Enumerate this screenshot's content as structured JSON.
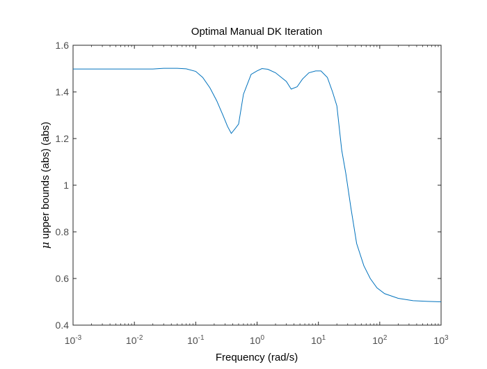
{
  "chart_data": {
    "type": "line",
    "title": "Optimal Manual DK Iteration",
    "xlabel": "Frequency (rad/s)",
    "ylabel": {
      "symbol": "μ",
      "text": " upper bounds (abs) (abs)"
    },
    "xscale": "log",
    "xlim": [
      0.001,
      1000
    ],
    "ylim": [
      0.4,
      1.6
    ],
    "grid": false,
    "xticks": [
      {
        "value": 0.001,
        "base": "10",
        "exp": "-3"
      },
      {
        "value": 0.01,
        "base": "10",
        "exp": "-2"
      },
      {
        "value": 0.1,
        "base": "10",
        "exp": "-1"
      },
      {
        "value": 1,
        "base": "10",
        "exp": "0"
      },
      {
        "value": 10,
        "base": "10",
        "exp": "1"
      },
      {
        "value": 100,
        "base": "10",
        "exp": "2"
      },
      {
        "value": 1000,
        "base": "10",
        "exp": "3"
      }
    ],
    "yticks": [
      {
        "value": 0.4,
        "label": "0.4"
      },
      {
        "value": 0.6,
        "label": "0.6"
      },
      {
        "value": 0.8,
        "label": "0.8"
      },
      {
        "value": 1.0,
        "label": "1"
      },
      {
        "value": 1.2,
        "label": "1.2"
      },
      {
        "value": 1.4,
        "label": "1.4"
      },
      {
        "value": 1.6,
        "label": "1.6"
      }
    ],
    "series": [
      {
        "color": "#0072bd",
        "x": [
          0.001,
          0.003,
          0.01,
          0.02,
          0.03,
          0.05,
          0.07,
          0.1,
          0.13,
          0.17,
          0.22,
          0.28,
          0.33,
          0.38,
          0.45,
          0.5,
          0.6,
          0.8,
          1.0,
          1.2,
          1.5,
          2.0,
          3.0,
          3.6,
          4.5,
          5.5,
          7.0,
          9.0,
          11.0,
          14.0,
          17.0,
          20.0,
          24.0,
          28.0,
          34.0,
          42.0,
          55.0,
          70.0,
          90.0,
          120.0,
          200.0,
          350.0,
          600.0,
          1000.0
        ],
        "y": [
          1.498,
          1.498,
          1.498,
          1.498,
          1.501,
          1.501,
          1.499,
          1.488,
          1.462,
          1.418,
          1.362,
          1.298,
          1.252,
          1.222,
          1.246,
          1.262,
          1.39,
          1.475,
          1.49,
          1.5,
          1.497,
          1.482,
          1.445,
          1.412,
          1.422,
          1.455,
          1.482,
          1.49,
          1.49,
          1.462,
          1.4,
          1.34,
          1.15,
          1.05,
          0.9,
          0.75,
          0.655,
          0.6,
          0.56,
          0.535,
          0.515,
          0.505,
          0.502,
          0.5
        ]
      }
    ]
  },
  "style": {
    "axis_color": "#262626",
    "tick_label_color": "#4d4d4d"
  }
}
